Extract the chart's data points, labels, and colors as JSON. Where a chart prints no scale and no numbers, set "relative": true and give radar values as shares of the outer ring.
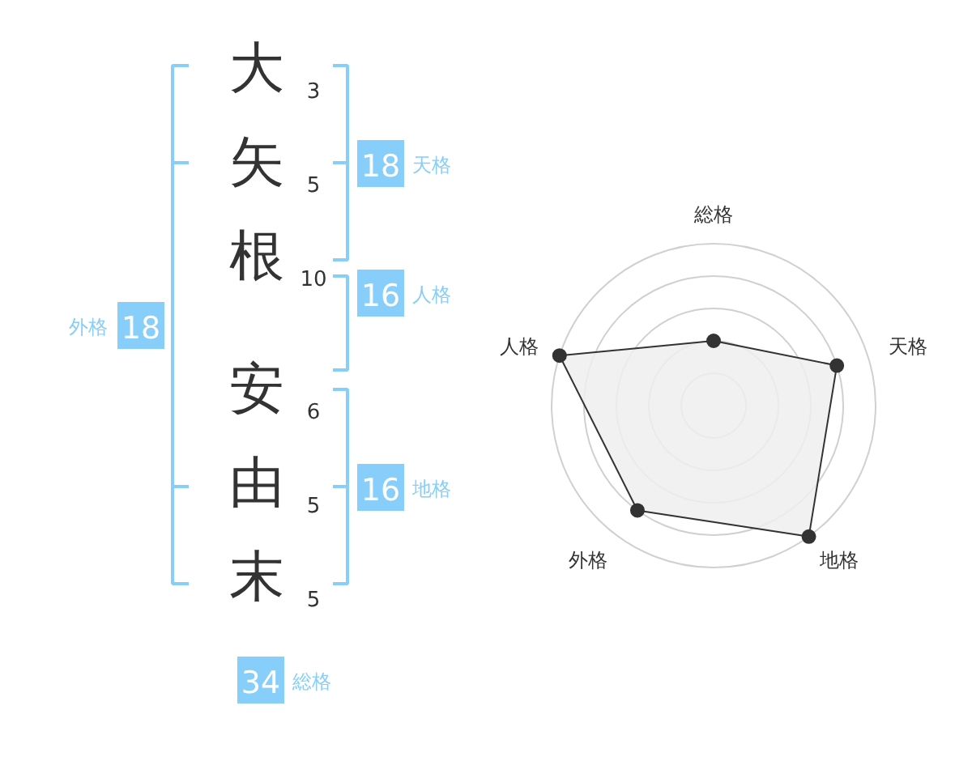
{
  "chart_data": [
    {
      "type": "other",
      "categories": [
        "大",
        "矢",
        "根",
        "安",
        "由",
        "末"
      ],
      "values": [
        3,
        5,
        10,
        6,
        5,
        5
      ],
      "data_labels": true
    },
    {
      "type": "other",
      "categories": [
        "天格",
        "人格",
        "外格",
        "地格",
        "総格"
      ],
      "values": [
        18,
        16,
        18,
        16,
        34
      ],
      "color": "#87cefa",
      "data_labels": true
    },
    {
      "type": "radar",
      "categories": [
        "総格",
        "天格",
        "地格",
        "外格",
        "人格"
      ],
      "relative": true,
      "grid": true,
      "marker": "circle",
      "series": [
        {
          "color": "#333333",
          "values": [
            0.4,
            0.8,
            1,
            0.8,
            1
          ]
        }
      ]
    }
  ]
}
